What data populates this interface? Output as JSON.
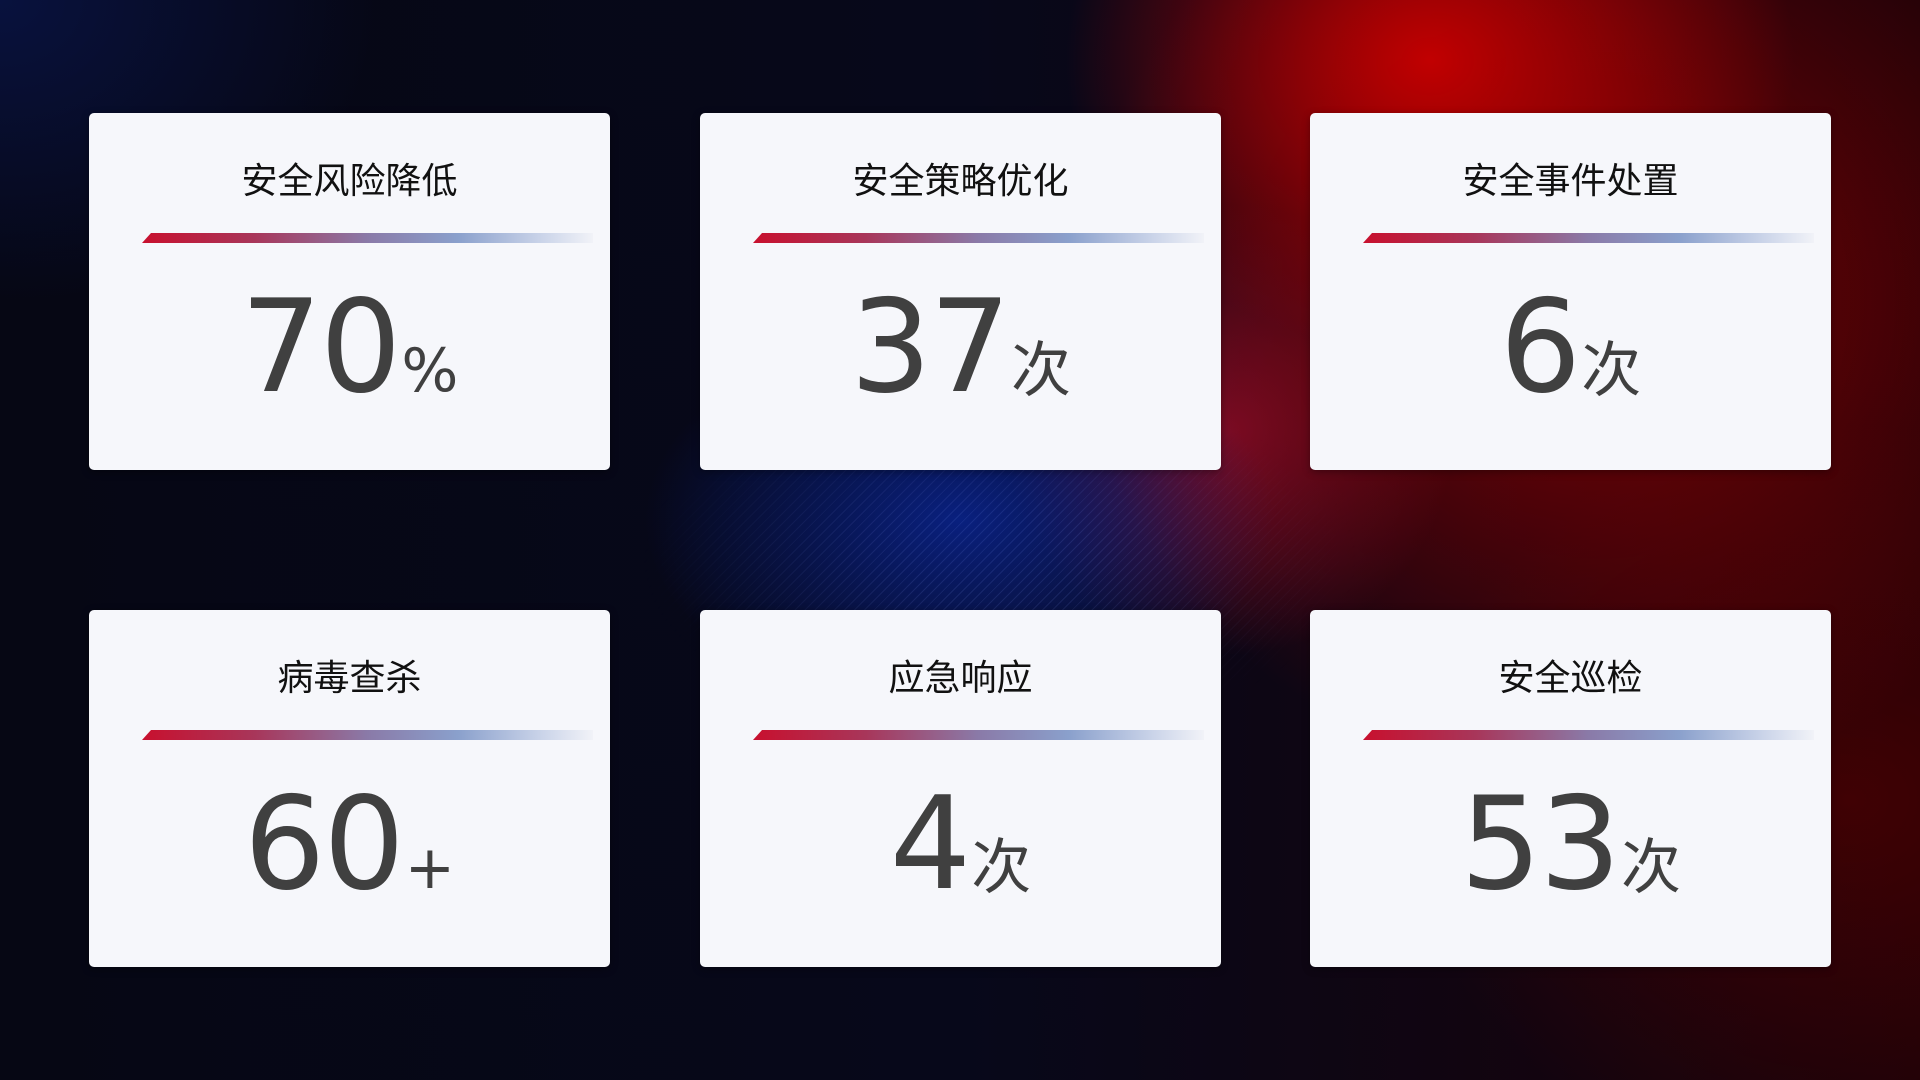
{
  "cards": [
    {
      "title": "安全风险降低",
      "value": "70",
      "unit": "%"
    },
    {
      "title": "安全策略优化",
      "value": "37",
      "unit": "次"
    },
    {
      "title": "安全事件处置",
      "value": "6",
      "unit": "次"
    },
    {
      "title": "病毒查杀",
      "value": "60",
      "unit": "+"
    },
    {
      "title": "应急响应",
      "value": "4",
      "unit": "次"
    },
    {
      "title": "安全巡检",
      "value": "53",
      "unit": "次"
    }
  ],
  "colors": {
    "accent_red": "#c8102e",
    "accent_blue": "#8aa0cc",
    "card_bg": "#f6f7fb",
    "value_text": "#404040"
  }
}
